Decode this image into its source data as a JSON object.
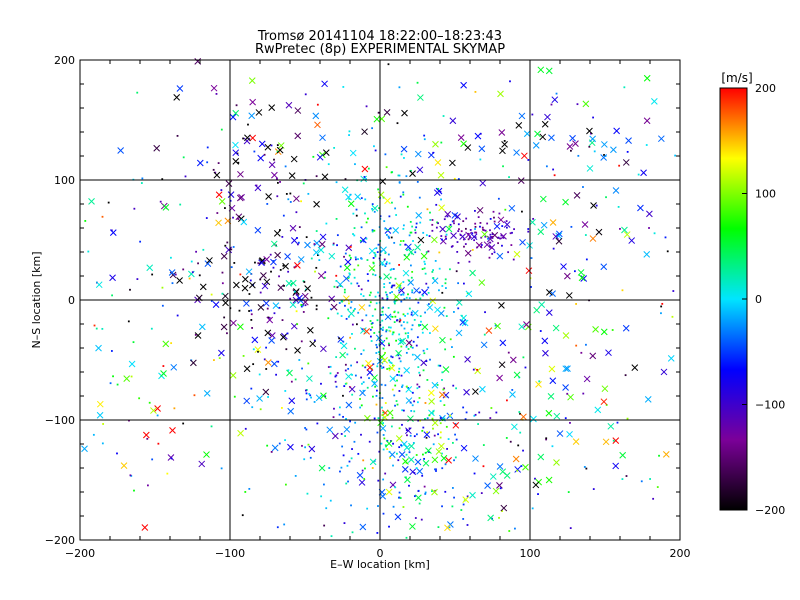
{
  "chart_data": {
    "type": "scatter",
    "title": "Tromsø 20141104  18:22:00–18:23:43",
    "subtitle": "RwPretec (8p) EXPERIMENTAL SKYMAP",
    "xlabel": "E–W location [km]",
    "ylabel": "N–S location [km]",
    "xlim": [
      -200,
      200
    ],
    "ylim": [
      -200,
      200
    ],
    "xticks": [
      "-200",
      "-100",
      "0",
      "100",
      "200"
    ],
    "yticks": [
      "-200",
      "-100",
      "0",
      "100",
      "200"
    ],
    "grid": true,
    "markers": [
      "x",
      "dot"
    ],
    "colorbar": {
      "label": "[m/s]",
      "range": [
        -200,
        200
      ],
      "ticks": [
        "-200",
        "-100",
        "0",
        "100",
        "200"
      ],
      "colors": [
        "#000000",
        "#7b0099",
        "#0000ff",
        "#00e5ff",
        "#00ff00",
        "#ffff00",
        "#ff0000"
      ]
    },
    "clusters": [
      {
        "x": 5,
        "y": 5,
        "sx": 22,
        "sy": 55,
        "n": 520,
        "v": 0,
        "vs": 45,
        "xfrac": 0.12
      },
      {
        "x": 10,
        "y": -120,
        "sx": 45,
        "sy": 45,
        "n": 260,
        "v": -45,
        "vs": 50,
        "xfrac": 0.2
      },
      {
        "x": 65,
        "y": 55,
        "sx": 16,
        "sy": 10,
        "n": 110,
        "v": -120,
        "vs": 25,
        "xfrac": 0.15
      },
      {
        "x": -80,
        "y": 25,
        "sx": 28,
        "sy": 45,
        "n": 170,
        "v": -150,
        "vs": 70,
        "xfrac": 0.4
      },
      {
        "x": -150,
        "y": -60,
        "sx": 25,
        "sy": 60,
        "n": 60,
        "v": 30,
        "vs": 110,
        "xfrac": 0.35
      },
      {
        "x": 0,
        "y": 0,
        "sx": 120,
        "sy": 110,
        "n": 380,
        "v": 0,
        "vs": 110,
        "xfrac": 0.45
      },
      {
        "x": 120,
        "y": 120,
        "sx": 45,
        "sy": 45,
        "n": 90,
        "v": -80,
        "vs": 90,
        "xfrac": 0.6
      },
      {
        "x": 120,
        "y": -50,
        "sx": 40,
        "sy": 80,
        "n": 110,
        "v": 20,
        "vs": 110,
        "xfrac": 0.5
      },
      {
        "x": -60,
        "y": 120,
        "sx": 45,
        "sy": 45,
        "n": 70,
        "v": -120,
        "vs": 90,
        "xfrac": 0.5
      },
      {
        "x": 20,
        "y": -100,
        "sx": 15,
        "sy": 30,
        "n": 60,
        "v": 90,
        "vs": 40,
        "xfrac": 0.3
      }
    ]
  }
}
